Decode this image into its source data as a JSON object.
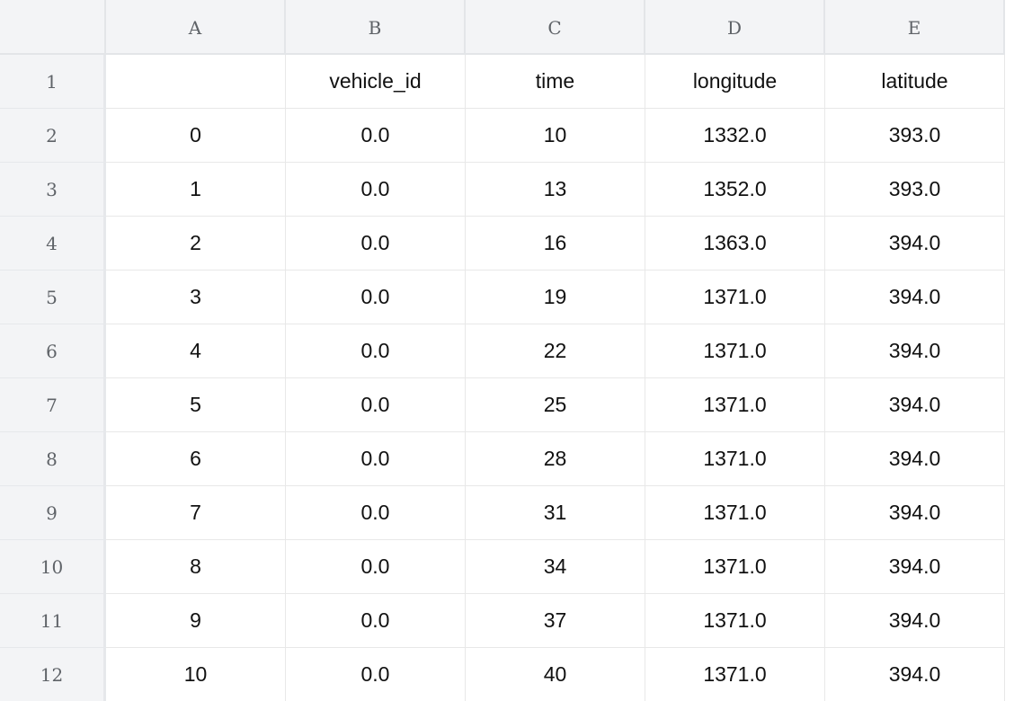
{
  "columns": [
    "A",
    "B",
    "C",
    "D",
    "E"
  ],
  "rows": [
    {
      "num": "1",
      "cells": [
        "",
        "vehicle_id",
        "time",
        "longitude",
        "latitude"
      ]
    },
    {
      "num": "2",
      "cells": [
        "0",
        "0.0",
        "10",
        "1332.0",
        "393.0"
      ]
    },
    {
      "num": "3",
      "cells": [
        "1",
        "0.0",
        "13",
        "1352.0",
        "393.0"
      ]
    },
    {
      "num": "4",
      "cells": [
        "2",
        "0.0",
        "16",
        "1363.0",
        "394.0"
      ]
    },
    {
      "num": "5",
      "cells": [
        "3",
        "0.0",
        "19",
        "1371.0",
        "394.0"
      ]
    },
    {
      "num": "6",
      "cells": [
        "4",
        "0.0",
        "22",
        "1371.0",
        "394.0"
      ]
    },
    {
      "num": "7",
      "cells": [
        "5",
        "0.0",
        "25",
        "1371.0",
        "394.0"
      ]
    },
    {
      "num": "8",
      "cells": [
        "6",
        "0.0",
        "28",
        "1371.0",
        "394.0"
      ]
    },
    {
      "num": "9",
      "cells": [
        "7",
        "0.0",
        "31",
        "1371.0",
        "394.0"
      ]
    },
    {
      "num": "10",
      "cells": [
        "8",
        "0.0",
        "34",
        "1371.0",
        "394.0"
      ]
    },
    {
      "num": "11",
      "cells": [
        "9",
        "0.0",
        "37",
        "1371.0",
        "394.0"
      ]
    },
    {
      "num": "12",
      "cells": [
        "10",
        "0.0",
        "40",
        "1371.0",
        "394.0"
      ]
    }
  ]
}
